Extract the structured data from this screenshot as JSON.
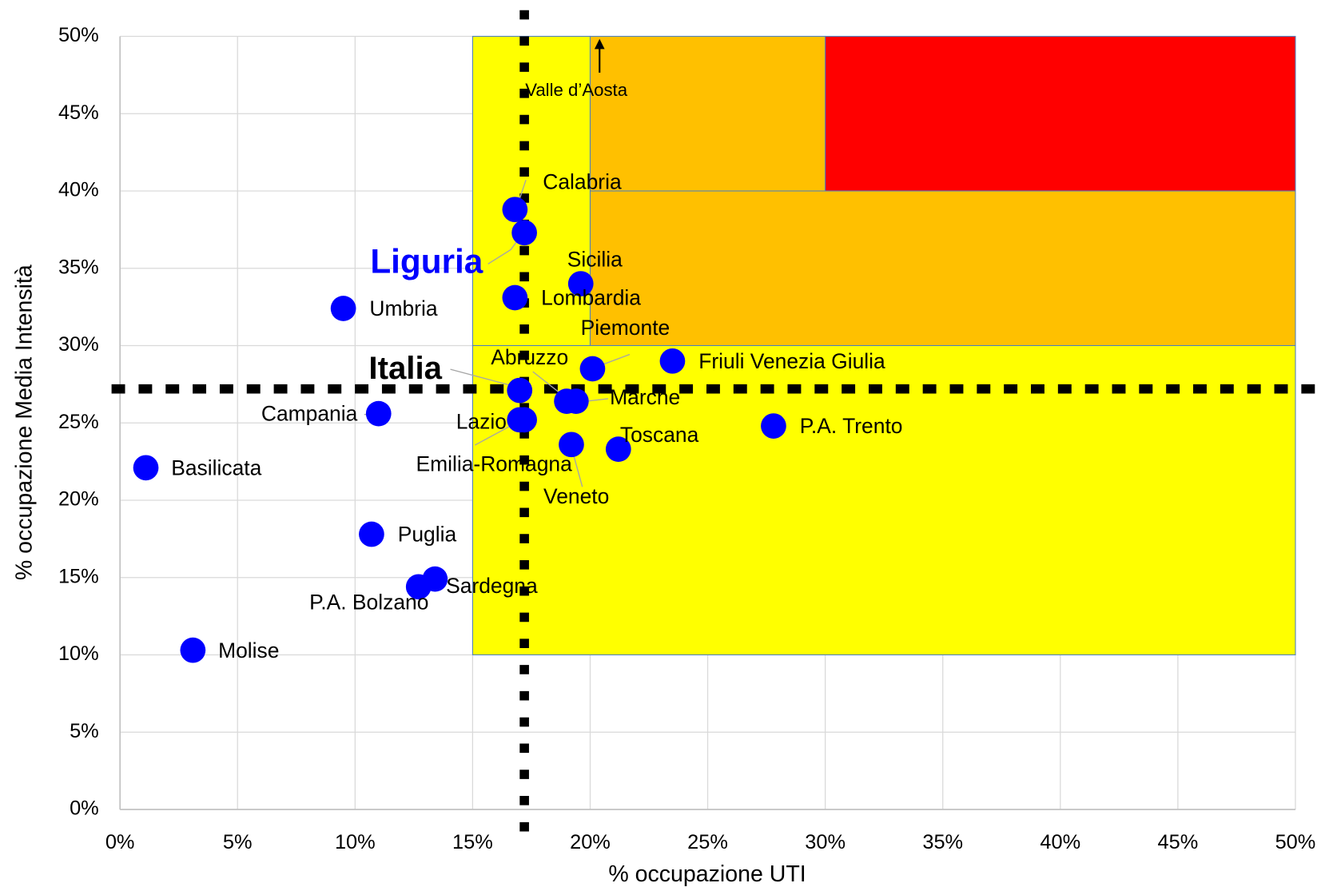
{
  "chart_data": {
    "type": "scatter",
    "x_label": "% occupazione UTI",
    "y_label": "% occupazione Media Intensità",
    "xlim": [
      0,
      50
    ],
    "ylim": [
      0,
      50
    ],
    "xticks": [
      {
        "value": 0,
        "label": "0%"
      },
      {
        "value": 5,
        "label": "5%"
      },
      {
        "value": 10,
        "label": "10%"
      },
      {
        "value": 15,
        "label": "15%"
      },
      {
        "value": 20,
        "label": "20%"
      },
      {
        "value": 25,
        "label": "25%"
      },
      {
        "value": 30,
        "label": "30%"
      },
      {
        "value": 35,
        "label": "35%"
      },
      {
        "value": 40,
        "label": "40%"
      },
      {
        "value": 45,
        "label": "45%"
      },
      {
        "value": 50,
        "label": "50%"
      }
    ],
    "yticks": [
      {
        "value": 0,
        "label": "0%"
      },
      {
        "value": 5,
        "label": "5%"
      },
      {
        "value": 10,
        "label": "10%"
      },
      {
        "value": 15,
        "label": "15%"
      },
      {
        "value": 20,
        "label": "20%"
      },
      {
        "value": 25,
        "label": "25%"
      },
      {
        "value": 30,
        "label": "30%"
      },
      {
        "value": 35,
        "label": "35%"
      },
      {
        "value": 40,
        "label": "40%"
      },
      {
        "value": 45,
        "label": "45%"
      },
      {
        "value": 50,
        "label": "50%"
      }
    ],
    "grid": true,
    "regions": [
      {
        "x": [
          15,
          50
        ],
        "y": [
          10,
          30
        ],
        "color": "#ffff00"
      },
      {
        "x": [
          15,
          20
        ],
        "y": [
          30,
          50
        ],
        "color": "#ffff00"
      },
      {
        "x": [
          20,
          50
        ],
        "y": [
          30,
          40
        ],
        "color": "#ffc000"
      },
      {
        "x": [
          20,
          30
        ],
        "y": [
          40,
          50
        ],
        "color": "#ffc000"
      },
      {
        "x": [
          30,
          50
        ],
        "y": [
          40,
          50
        ],
        "color": "#ff0000"
      }
    ],
    "reference_lines": {
      "x": 17.2,
      "y": 27.2,
      "color": "#000000"
    },
    "series": [
      {
        "color": "#0000ff",
        "labels": [
          "Calabria",
          "Liguria",
          "Sicilia",
          "Lombardia",
          "Umbria",
          "Piemonte",
          "Friuli Venezia Giulia",
          "Italia",
          "Abruzzo",
          "Marche",
          "Lazio",
          "Emilia-Romagna",
          "Veneto",
          "Toscana",
          "Campania",
          "P.A. Trento",
          "Basilicata",
          "Puglia",
          "Sardegna",
          "P.A. Bolzano",
          "Molise"
        ],
        "x": [
          16.8,
          17.2,
          19.6,
          16.8,
          9.5,
          20.1,
          23.5,
          17.0,
          19.0,
          19.4,
          17.2,
          17.0,
          19.2,
          21.2,
          11.0,
          27.8,
          1.1,
          10.7,
          13.4,
          12.7,
          3.1
        ],
        "values": [
          38.8,
          37.3,
          34.0,
          33.1,
          32.4,
          28.5,
          29.0,
          27.1,
          26.4,
          26.4,
          25.2,
          25.2,
          23.6,
          23.3,
          25.6,
          24.8,
          22.1,
          17.8,
          14.9,
          14.4,
          10.3
        ]
      }
    ],
    "annotation": {
      "text": "Valle d’Aosta",
      "x": 20.4
    }
  }
}
